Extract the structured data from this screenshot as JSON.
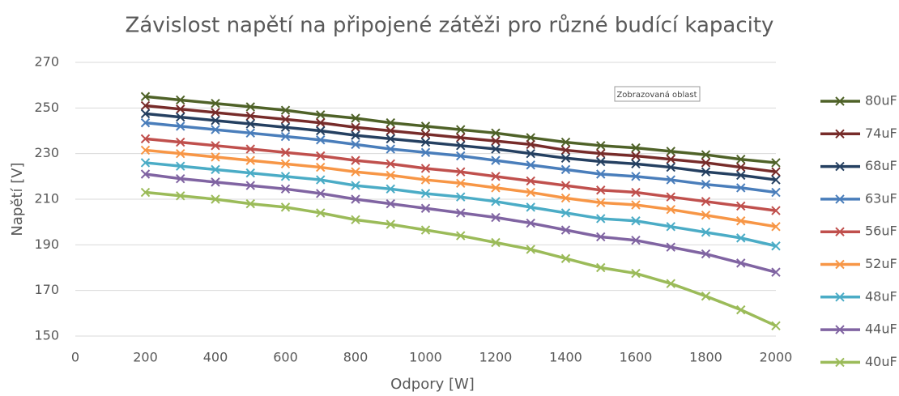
{
  "chart_data": {
    "type": "line",
    "title": "Závislost napětí na připojené zátěži pro různé budící kapacity",
    "xlabel": "Odpory [W]",
    "ylabel": "Napětí [V]",
    "annotation": "Zobrazovaná oblast",
    "x": [
      200,
      300,
      400,
      500,
      600,
      700,
      800,
      900,
      1000,
      1100,
      1200,
      1300,
      1400,
      1500,
      1600,
      1700,
      1800,
      1900,
      2000
    ],
    "xlim": [
      0,
      2000
    ],
    "xticks": [
      0,
      200,
      400,
      600,
      800,
      1000,
      1200,
      1400,
      1600,
      1800,
      2000
    ],
    "ylim": [
      150,
      270
    ],
    "yticks": [
      150,
      170,
      190,
      210,
      230,
      250,
      270
    ],
    "grid": true,
    "legend": "right",
    "series": [
      {
        "name": "80uF",
        "color": "#4f6228",
        "values": [
          255,
          253.5,
          252,
          250.5,
          249,
          247,
          245.5,
          243.5,
          242,
          240.5,
          239,
          237,
          235,
          233.5,
          232.5,
          231,
          229.5,
          227.5,
          226
        ]
      },
      {
        "name": "74uF",
        "color": "#772c2a",
        "values": [
          251,
          249.5,
          248,
          246.5,
          245,
          243.5,
          241.5,
          240,
          238.5,
          237,
          235.5,
          234,
          231.5,
          230,
          229,
          227.5,
          226,
          224,
          222
        ]
      },
      {
        "name": "68uF",
        "color": "#254061",
        "values": [
          247.5,
          246,
          244.5,
          243,
          241.5,
          240,
          238,
          236.5,
          235,
          233.5,
          232,
          230,
          228,
          226.5,
          225.5,
          224,
          222,
          220.5,
          218.5
        ]
      },
      {
        "name": "63uF",
        "color": "#4a7ebb",
        "values": [
          243.5,
          242,
          240.5,
          239,
          237.5,
          236,
          234,
          232,
          230.5,
          229,
          227,
          225,
          223,
          221,
          220,
          218.5,
          216.5,
          215,
          213
        ]
      },
      {
        "name": "56uF",
        "color": "#c0504d",
        "values": [
          236.5,
          235,
          233.5,
          232,
          230.5,
          229,
          227,
          225.5,
          223.5,
          222,
          220,
          218,
          216,
          214,
          213,
          211,
          209,
          207,
          205
        ]
      },
      {
        "name": "52uF",
        "color": "#f79646",
        "values": [
          231.5,
          230,
          228.5,
          227,
          225.5,
          224,
          222,
          220.5,
          218.5,
          217,
          215,
          213,
          210.5,
          208.5,
          207.5,
          205.5,
          203,
          200.5,
          198
        ]
      },
      {
        "name": "48uF",
        "color": "#4bacc6",
        "values": [
          226,
          224.5,
          223,
          221.5,
          220,
          218.5,
          216,
          214.5,
          212.5,
          211,
          209,
          206.5,
          204,
          201.5,
          200.5,
          198,
          195.5,
          193,
          189.5
        ]
      },
      {
        "name": "44uF",
        "color": "#8064a2",
        "values": [
          221,
          219,
          217.5,
          216,
          214.5,
          212.5,
          210,
          208,
          206,
          204,
          202,
          199.5,
          196.5,
          193.5,
          192,
          189,
          186,
          182,
          178
        ]
      },
      {
        "name": "40uF",
        "color": "#9bbb59",
        "values": [
          213,
          211.5,
          210,
          208,
          206.5,
          204,
          201,
          199,
          196.5,
          194,
          191,
          188,
          184,
          180,
          177.5,
          173,
          167.5,
          161.5,
          154.5
        ]
      }
    ]
  }
}
